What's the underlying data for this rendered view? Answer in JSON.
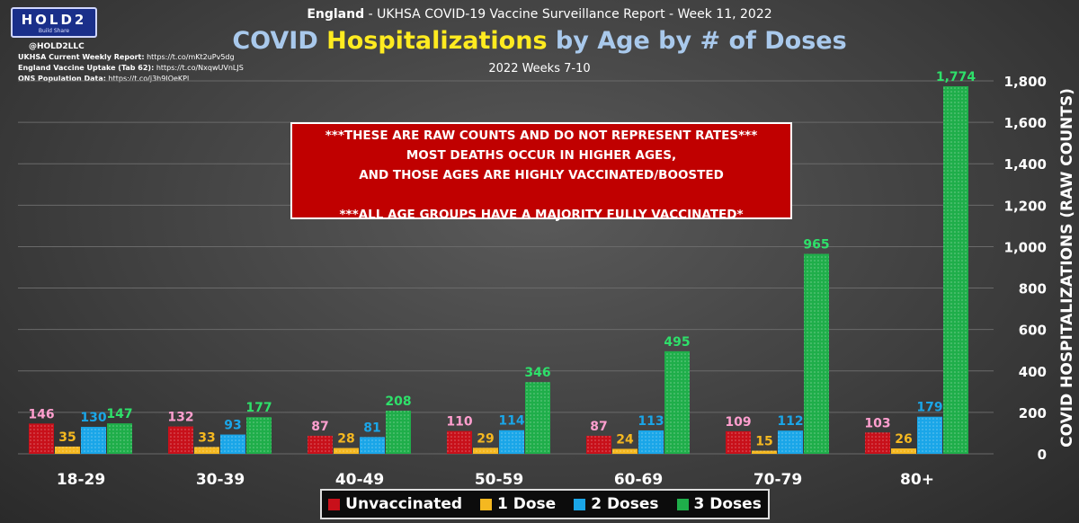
{
  "header": {
    "logo_text": "HOLD2",
    "logo_tagline": "Build Share",
    "handle": "@HOLD2LLC",
    "sources": [
      {
        "label": "UKHSA Current Weekly Report:",
        "url": "https://t.co/mKt2uPv5dg"
      },
      {
        "label": "England Vaccine Uptake (Tab 62):",
        "url": "https://t.co/NxqwUVnLJS"
      },
      {
        "label": "ONS Population Data:",
        "url": "https://t.co/j3h9IOeKPl"
      }
    ],
    "supertitle_bold": "England",
    "supertitle_rest": " - UKHSA COVID-19 Vaccine Surveillance Report - Week 11, 2022"
  },
  "notice": {
    "lines": [
      "***THESE ARE RAW COUNTS AND DO NOT REPRESENT RATES***",
      "MOST DEATHS OCCUR IN HIGHER AGES,",
      "AND THOSE AGES ARE HIGHLY VACCINATED/BOOSTED",
      "",
      "***ALL AGE GROUPS HAVE A MAJORITY FULLY VACCINATED*"
    ]
  },
  "colors": {
    "unvaccinated": "#c8101a",
    "dose1": "#f5b820",
    "dose2": "#1aa6e8",
    "dose3": "#1fae4a",
    "label_unvaccinated": "#ff9fcf",
    "label_dose1": "#f5b820",
    "label_dose2": "#1aa6e8",
    "label_dose3": "#2ee06a",
    "title_blue": "#a9c9ec",
    "title_yellow": "#ffeb20"
  },
  "chart_data": {
    "type": "bar",
    "title_part1": "COVID",
    "title_part2": "Hospitalizations",
    "title_part3": "by Age by # of Doses",
    "subtitle": "2022 Weeks 7-10",
    "xlabel": "",
    "ylabel": "COVID HOSPITALIZATIONS (RAW COUNTS)",
    "ylim": [
      0,
      1800
    ],
    "yticks": [
      "0",
      "200",
      "400",
      "600",
      "800",
      "1,000",
      "1,200",
      "1,400",
      "1,600",
      "1,800"
    ],
    "categories": [
      "18-29",
      "30-39",
      "40-49",
      "50-59",
      "60-69",
      "70-79",
      "80+"
    ],
    "series": [
      {
        "name": "Unvaccinated",
        "key": "unvaccinated",
        "values": [
          146,
          132,
          87,
          110,
          87,
          109,
          103
        ],
        "labels": [
          "146",
          "132",
          "87",
          "110",
          "87",
          "109",
          "103"
        ]
      },
      {
        "name": "1 Dose",
        "key": "dose1",
        "values": [
          35,
          33,
          28,
          29,
          24,
          15,
          26
        ],
        "labels": [
          "35",
          "33",
          "28",
          "29",
          "24",
          "15",
          "26"
        ]
      },
      {
        "name": "2 Doses",
        "key": "dose2",
        "values": [
          130,
          93,
          81,
          114,
          113,
          112,
          179
        ],
        "labels": [
          "130",
          "93",
          "81",
          "114",
          "113",
          "112",
          "179"
        ]
      },
      {
        "name": "3 Doses",
        "key": "dose3",
        "values": [
          147,
          177,
          208,
          346,
          495,
          965,
          1774
        ],
        "labels": [
          "147",
          "177",
          "208",
          "346",
          "495",
          "965",
          "1,774"
        ]
      }
    ],
    "legend_position": "bottom"
  }
}
